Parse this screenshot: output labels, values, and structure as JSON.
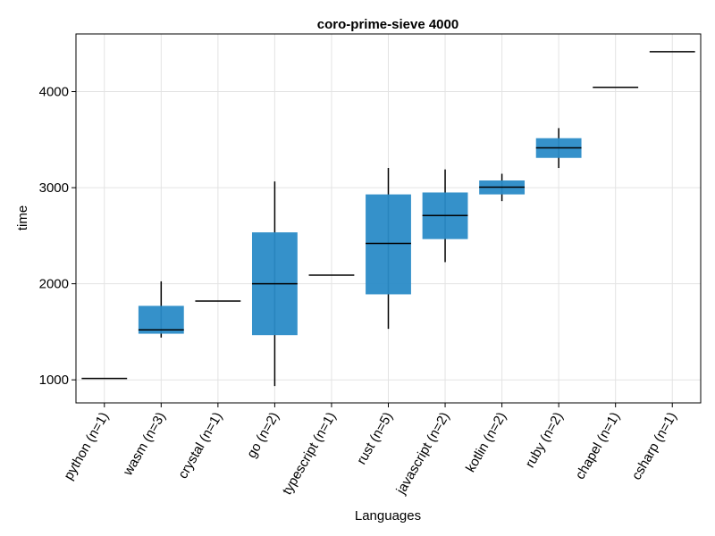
{
  "chart_data": {
    "type": "boxplot",
    "title": "coro-prime-sieve 4000",
    "xlabel": "Languages",
    "ylabel": "time",
    "ylim": [
      760,
      4600
    ],
    "yticks": [
      1000,
      2000,
      3000,
      4000
    ],
    "grid": true,
    "legend": "none",
    "box_color": "#2a8bc7",
    "categories": [
      "python (n=1)",
      "wasm (n=3)",
      "crystal (n=1)",
      "go (n=2)",
      "typescript (n=1)",
      "rust (n=5)",
      "javascript (n=2)",
      "kotlin (n=2)",
      "ruby (n=2)",
      "chapel (n=1)",
      "csharp (n=1)"
    ],
    "boxes": [
      {
        "min": 1015,
        "q1": 1015,
        "median": 1015,
        "q3": 1015,
        "max": 1015
      },
      {
        "min": 1440,
        "q1": 1480,
        "median": 1520,
        "q3": 1770,
        "max": 2025
      },
      {
        "min": 1820,
        "q1": 1820,
        "median": 1820,
        "q3": 1820,
        "max": 1820
      },
      {
        "min": 935,
        "q1": 1465,
        "median": 2000,
        "q3": 2535,
        "max": 3065
      },
      {
        "min": 2090,
        "q1": 2090,
        "median": 2090,
        "q3": 2090,
        "max": 2090
      },
      {
        "min": 1530,
        "q1": 1890,
        "median": 2420,
        "q3": 2930,
        "max": 3205
      },
      {
        "min": 2225,
        "q1": 2465,
        "median": 2710,
        "q3": 2950,
        "max": 3190
      },
      {
        "min": 2860,
        "q1": 2930,
        "median": 3005,
        "q3": 3075,
        "max": 3145
      },
      {
        "min": 3205,
        "q1": 3310,
        "median": 3415,
        "q3": 3515,
        "max": 3620
      },
      {
        "min": 4045,
        "q1": 4045,
        "median": 4045,
        "q3": 4045,
        "max": 4045
      },
      {
        "min": 4415,
        "q1": 4415,
        "median": 4415,
        "q3": 4415,
        "max": 4415
      }
    ]
  }
}
